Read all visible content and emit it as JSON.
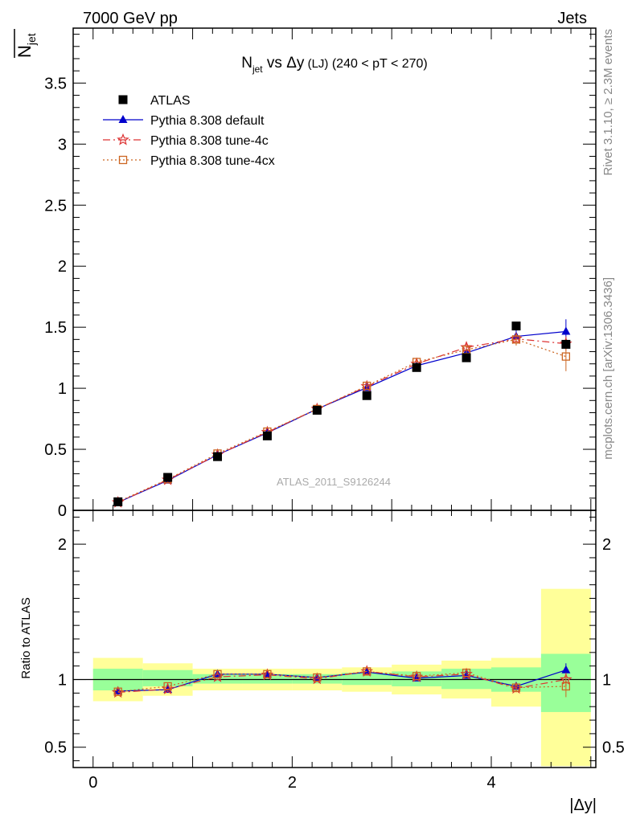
{
  "header": {
    "left": "7000 GeV pp",
    "right": "Jets",
    "side_top": "Rivet 3.1.10, ≥ 2.3M events",
    "side_bottom": "mcplots.cern.ch [arXiv:1306.3436]"
  },
  "chart_data": {
    "type": "scatter",
    "title_main": "N",
    "title_sub": "jet",
    "title_rest": " vs Δy",
    "title_small": " (LJ)",
    "title_range": "  (240 < pT < 270)",
    "ylabel_main": "N",
    "ylabel_sub": "jet",
    "xlabel": "|Δy|",
    "ratio_ylabel": "Ratio to ATLAS",
    "watermark": "ATLAS_2011_S9126244",
    "xlim": [
      -0.2,
      5.05
    ],
    "ylim_main": [
      0,
      3.95
    ],
    "ylim_ratio": [
      0.35,
      2.25
    ],
    "x_ticks": [
      0,
      2,
      4
    ],
    "y_ticks_main": [
      0,
      0.5,
      1,
      1.5,
      2,
      2.5,
      3,
      3.5
    ],
    "y_tick_labels_main": [
      "0",
      "0.5",
      "1",
      "1.5",
      "2",
      "2.5",
      "3",
      "3.5"
    ],
    "y_ticks_ratio": [
      0.5,
      1,
      2
    ],
    "y_tick_labels_ratio": [
      "0.5",
      "1",
      "2"
    ],
    "x": [
      0.25,
      0.75,
      1.25,
      1.75,
      2.25,
      2.75,
      3.25,
      3.75,
      4.25,
      4.75
    ],
    "bin_edges": [
      0,
      0.5,
      1.0,
      1.5,
      2.0,
      2.5,
      3.0,
      3.5,
      4.0,
      4.5,
      5.0
    ],
    "data": {
      "name": "ATLAS",
      "y": [
        0.07,
        0.27,
        0.44,
        0.61,
        0.82,
        0.94,
        1.17,
        1.25,
        1.51,
        1.36
      ]
    },
    "ratio_bands": {
      "green": [
        [
          0.92,
          1.08
        ],
        [
          0.95,
          1.07
        ],
        [
          0.97,
          1.04
        ],
        [
          0.97,
          1.04
        ],
        [
          0.97,
          1.04
        ],
        [
          0.96,
          1.05
        ],
        [
          0.95,
          1.06
        ],
        [
          0.93,
          1.08
        ],
        [
          0.91,
          1.09
        ],
        [
          0.76,
          1.19
        ]
      ],
      "yellow": [
        [
          0.84,
          1.16
        ],
        [
          0.88,
          1.12
        ],
        [
          0.92,
          1.08
        ],
        [
          0.92,
          1.08
        ],
        [
          0.92,
          1.08
        ],
        [
          0.91,
          1.09
        ],
        [
          0.89,
          1.11
        ],
        [
          0.86,
          1.14
        ],
        [
          0.8,
          1.16
        ],
        [
          0.36,
          1.67
        ]
      ]
    },
    "series": [
      {
        "name": "Pythia 8.308 default",
        "color": "#0000cc",
        "marker": "triangle",
        "dash": "",
        "y": [
          0.065,
          0.245,
          0.455,
          0.635,
          0.83,
          1.005,
          1.185,
          1.29,
          1.425,
          1.465
        ],
        "err": [
          0.005,
          0.008,
          0.01,
          0.012,
          0.014,
          0.016,
          0.02,
          0.03,
          0.05,
          0.1
        ],
        "ratio": [
          0.915,
          0.925,
          1.04,
          1.04,
          1.015,
          1.055,
          1.01,
          1.03,
          0.95,
          1.07
        ],
        "ratio_err": [
          0.01,
          0.01,
          0.01,
          0.01,
          0.01,
          0.01,
          0.012,
          0.015,
          0.03,
          0.05
        ]
      },
      {
        "name": "Pythia 8.308 tune-4c",
        "color": "#dd3333",
        "marker": "star",
        "dash": "9,4,2,4",
        "y": [
          0.065,
          0.25,
          0.455,
          0.64,
          0.83,
          1.015,
          1.2,
          1.335,
          1.405,
          1.365
        ],
        "err": [
          0.005,
          0.008,
          0.01,
          0.012,
          0.014,
          0.016,
          0.02,
          0.03,
          0.05,
          0.06
        ],
        "ratio": [
          0.905,
          0.93,
          1.02,
          1.035,
          1.005,
          1.06,
          1.02,
          1.04,
          0.935,
          1.0
        ],
        "ratio_err": [
          0.01,
          0.01,
          0.01,
          0.01,
          0.01,
          0.01,
          0.012,
          0.015,
          0.03,
          0.05
        ]
      },
      {
        "name": "Pythia 8.308 tune-4cx",
        "color": "#cc6622",
        "marker": "square-open",
        "dash": "2,3",
        "y": [
          0.07,
          0.255,
          0.465,
          0.645,
          0.83,
          1.02,
          1.215,
          1.315,
          1.4,
          1.26
        ],
        "err": [
          0.005,
          0.008,
          0.01,
          0.012,
          0.014,
          0.016,
          0.02,
          0.03,
          0.05,
          0.12
        ],
        "ratio": [
          0.91,
          0.95,
          1.04,
          1.04,
          1.015,
          1.06,
          1.025,
          1.05,
          0.94,
          0.95
        ],
        "ratio_err": [
          0.01,
          0.01,
          0.01,
          0.01,
          0.01,
          0.01,
          0.012,
          0.015,
          0.03,
          0.08
        ]
      }
    ],
    "colors": {
      "data": "#000000",
      "band_green": "#99ff99",
      "band_yellow": "#ffff99",
      "axis": "#000000",
      "side_text": "#888888",
      "watermark": "#aaaaaa"
    }
  }
}
